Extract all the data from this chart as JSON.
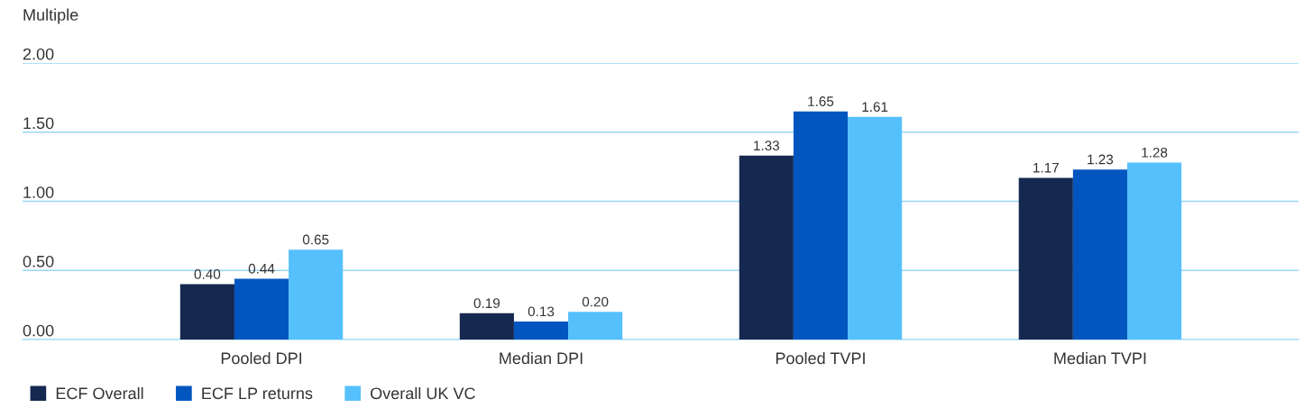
{
  "chart_data": {
    "type": "bar",
    "ylabel": "Multiple",
    "categories": [
      "Pooled DPI",
      "Median DPI",
      "Pooled TVPI",
      "Median TVPI"
    ],
    "series": [
      {
        "name": "ECF Overall",
        "color": "#15284f",
        "values": [
          0.4,
          0.19,
          1.33,
          1.17
        ],
        "value_labels": [
          "0.40",
          "0.19",
          "1.33",
          "1.17"
        ]
      },
      {
        "name": "ECF LP returns",
        "color": "#0356bf",
        "values": [
          0.44,
          0.13,
          1.65,
          1.23
        ],
        "value_labels": [
          "0.44",
          "0.13",
          "1.65",
          "1.23"
        ]
      },
      {
        "name": "Overall UK VC",
        "color": "#55c0fb",
        "values": [
          0.65,
          0.2,
          1.61,
          1.28
        ],
        "value_labels": [
          "0.65",
          "0.20",
          "1.61",
          "1.28"
        ]
      }
    ],
    "ylim": [
      0,
      2
    ],
    "yticks": [
      {
        "value": 0,
        "label": "0.00"
      },
      {
        "value": 0.5,
        "label": "0.50"
      },
      {
        "value": 1,
        "label": "1.00"
      },
      {
        "value": 1.5,
        "label": "1.50"
      },
      {
        "value": 2,
        "label": "2.00"
      }
    ],
    "grid": "y",
    "legend": "bottom left"
  }
}
